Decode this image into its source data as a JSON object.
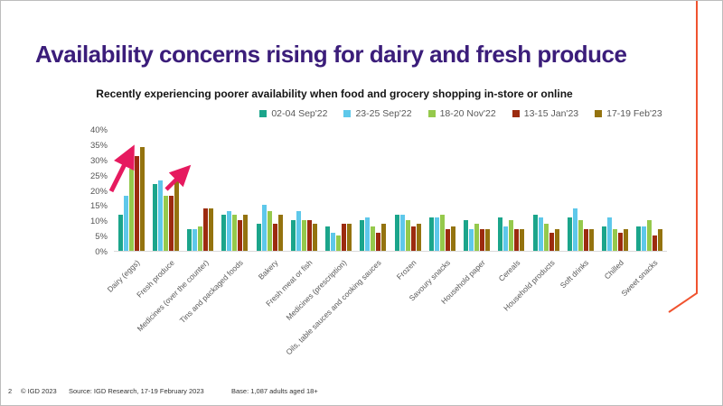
{
  "slide": {
    "title": "Availability concerns rising for dairy and fresh produce",
    "subtitle": "Recently experiencing poorer availability when food and grocery shopping in-store or online"
  },
  "footer": {
    "page_number": "2",
    "copyright": "© IGD 2023",
    "source": "Source: IGD Research, 17-19 February 2023",
    "base": "Base: 1,087 adults aged 18+"
  },
  "colors": {
    "title": "#3B1D7A",
    "accent_arrow": "#E61A5F",
    "decoration_line": "#F0532F",
    "axis_text": "#595959"
  },
  "chart_data": {
    "type": "bar",
    "title": "Recently experiencing poorer availability when food and grocery shopping in-store or online",
    "categories": [
      "Dairy (eggs)",
      "Fresh produce",
      "Medicines (over the counter)",
      "Tins and packaged foods",
      "Bakery",
      "Fresh meat or fish",
      "Medicines (prescription)",
      "Oils, table sauces and cooking sauces",
      "Frozen",
      "Savoury snacks",
      "Household paper",
      "Cereals",
      "Household products",
      "Soft drinks",
      "Chilled",
      "Sweet snacks"
    ],
    "series": [
      {
        "name": "02-04 Sep'22",
        "color": "#1BA58B",
        "values": [
          12,
          22,
          7,
          12,
          9,
          10,
          8,
          10,
          12,
          11,
          10,
          11,
          12,
          11,
          8,
          8
        ]
      },
      {
        "name": "23-25 Sep'22",
        "color": "#5EC8EA",
        "values": [
          18,
          23,
          7,
          13,
          15,
          13,
          6,
          11,
          12,
          11,
          7,
          8,
          11,
          14,
          11,
          8
        ]
      },
      {
        "name": "18-20 Nov'22",
        "color": "#95C94C",
        "values": [
          27,
          18,
          8,
          12,
          13,
          10,
          5,
          8,
          10,
          12,
          9,
          10,
          9,
          10,
          7,
          10
        ]
      },
      {
        "name": "13-15 Jan'23",
        "color": "#9C2B0F",
        "values": [
          31,
          18,
          14,
          10,
          9,
          10,
          9,
          6,
          8,
          7,
          7,
          7,
          6,
          7,
          6,
          5
        ]
      },
      {
        "name": "17-19 Feb'23",
        "color": "#94730F",
        "values": [
          34,
          23,
          14,
          12,
          12,
          9,
          9,
          9,
          9,
          8,
          7,
          7,
          7,
          7,
          7,
          7
        ]
      }
    ],
    "xlabel": "",
    "ylabel": "",
    "ylim": [
      0,
      40
    ],
    "ytick_step": 5,
    "ytick_format": "percent",
    "grid": false,
    "legend_position": "top",
    "annotations": [
      "pink rising arrow over Dairy (eggs) group",
      "pink rising arrow over Fresh produce group"
    ]
  }
}
